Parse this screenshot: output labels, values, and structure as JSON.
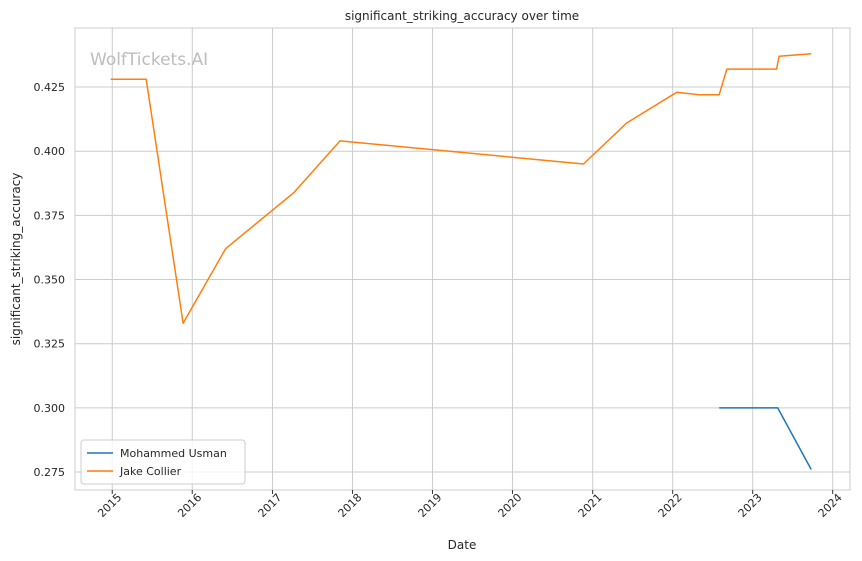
{
  "chart_data": {
    "type": "line",
    "title": "significant_striking_accuracy over time",
    "xlabel": "Date",
    "ylabel": "significant_striking_accuracy",
    "watermark": "WolfTickets.AI",
    "xlim": [
      "2014-07-15",
      "2024-03-20"
    ],
    "ylim": [
      0.268,
      0.448
    ],
    "x_ticks": [
      "2015",
      "2016",
      "2017",
      "2018",
      "2019",
      "2020",
      "2021",
      "2022",
      "2023",
      "2024"
    ],
    "y_ticks": [
      "0.275",
      "0.300",
      "0.325",
      "0.350",
      "0.375",
      "0.400",
      "0.425"
    ],
    "y_tick_values": [
      0.275,
      0.3,
      0.325,
      0.35,
      0.375,
      0.4,
      0.425
    ],
    "grid": true,
    "legend_position": "lower-left",
    "series": [
      {
        "name": "Mohammed Usman",
        "color": "#1f77b4",
        "points": [
          {
            "x": "2022-08-01",
            "y": 0.3
          },
          {
            "x": "2023-04-25",
            "y": 0.3
          },
          {
            "x": "2023-09-25",
            "y": 0.276
          }
        ]
      },
      {
        "name": "Jake Collier",
        "color": "#ff7f0e",
        "points": [
          {
            "x": "2014-12-25",
            "y": 0.428
          },
          {
            "x": "2015-06-05",
            "y": 0.428
          },
          {
            "x": "2015-11-20",
            "y": 0.333
          },
          {
            "x": "2016-06-01",
            "y": 0.362
          },
          {
            "x": "2017-04-10",
            "y": 0.384
          },
          {
            "x": "2017-11-05",
            "y": 0.404
          },
          {
            "x": "2020-11-20",
            "y": 0.395
          },
          {
            "x": "2021-06-05",
            "y": 0.411
          },
          {
            "x": "2022-01-20",
            "y": 0.423
          },
          {
            "x": "2022-05-01",
            "y": 0.422
          },
          {
            "x": "2022-08-01",
            "y": 0.422
          },
          {
            "x": "2022-09-05",
            "y": 0.432
          },
          {
            "x": "2023-04-20",
            "y": 0.432
          },
          {
            "x": "2023-05-01",
            "y": 0.437
          },
          {
            "x": "2023-09-25",
            "y": 0.438
          }
        ]
      }
    ]
  }
}
